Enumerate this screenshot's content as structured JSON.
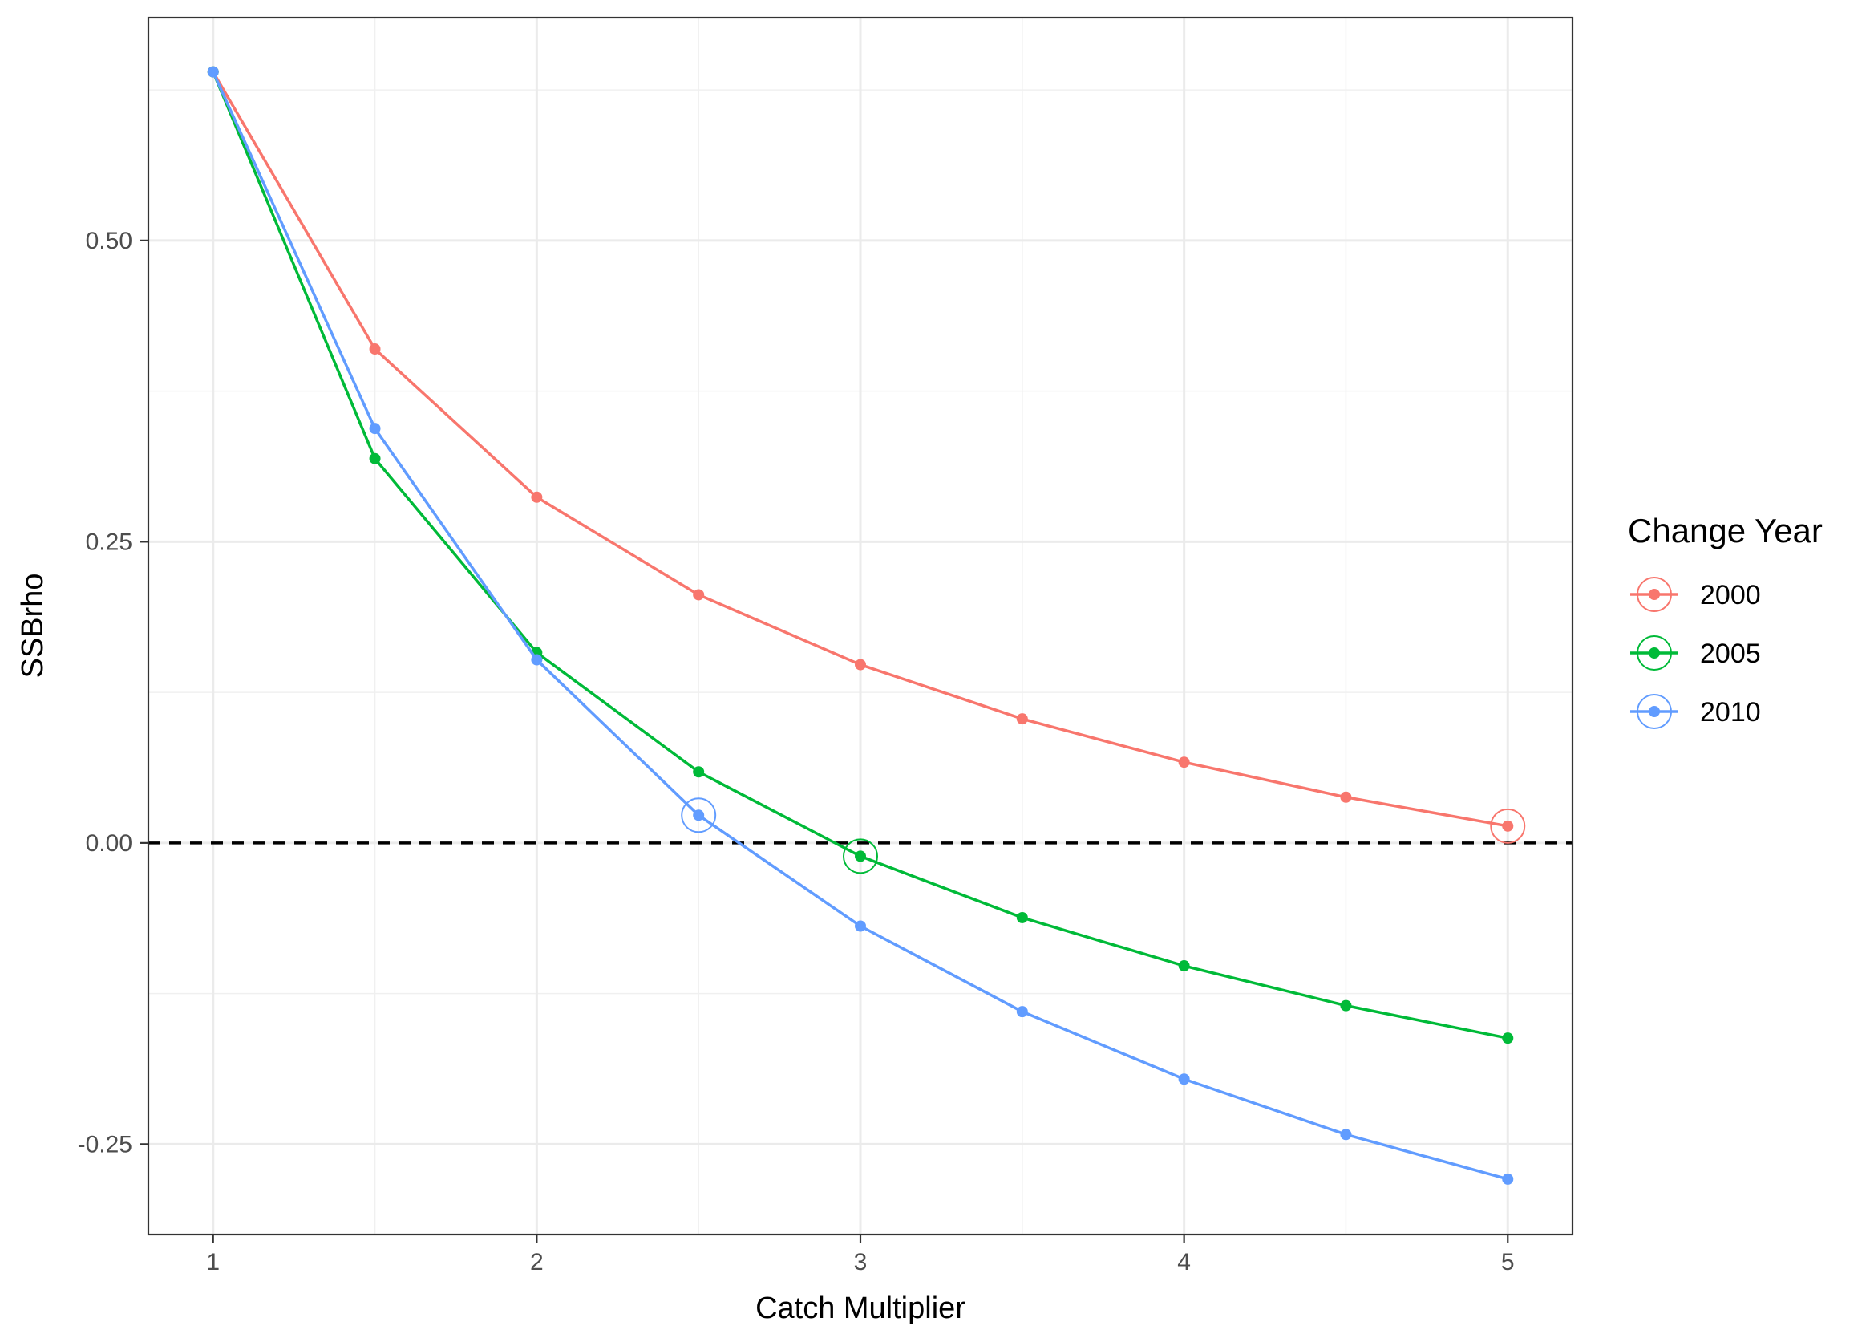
{
  "chart_data": {
    "type": "line",
    "xlabel": "Catch Multiplier",
    "ylabel": "SSBrho",
    "xlim": [
      0.8,
      5.2
    ],
    "ylim": [
      -0.325,
      0.685
    ],
    "x_ticks": [
      1,
      2,
      3,
      4,
      5
    ],
    "x_tick_labels": [
      "1",
      "2",
      "3",
      "4",
      "5"
    ],
    "y_ticks": [
      -0.25,
      0,
      0.25,
      0.5
    ],
    "y_tick_labels": [
      "-0.25",
      "0.00",
      "0.25",
      "0.50"
    ],
    "grid": true,
    "reference_line": {
      "y": 0,
      "style": "dashed",
      "color": "#000000"
    },
    "legend": {
      "title": "Change Year",
      "position": "right"
    },
    "x": [
      1,
      1.5,
      2,
      2.5,
      3,
      3.5,
      4,
      4.5,
      5
    ],
    "series": [
      {
        "name": "2000",
        "color": "#F8766D",
        "values": [
          0.64,
          0.41,
          0.287,
          0.206,
          0.148,
          0.103,
          0.067,
          0.038,
          0.014
        ],
        "highlight_x": 5
      },
      {
        "name": "2005",
        "color": "#00BA38",
        "values": [
          0.64,
          0.319,
          0.158,
          0.059,
          -0.011,
          -0.062,
          -0.102,
          -0.135,
          -0.162
        ],
        "highlight_x": 3
      },
      {
        "name": "2010",
        "color": "#619CFF",
        "values": [
          0.64,
          0.344,
          0.152,
          0.023,
          -0.069,
          -0.14,
          -0.196,
          -0.242,
          -0.279
        ],
        "highlight_x": 2.5
      }
    ]
  }
}
